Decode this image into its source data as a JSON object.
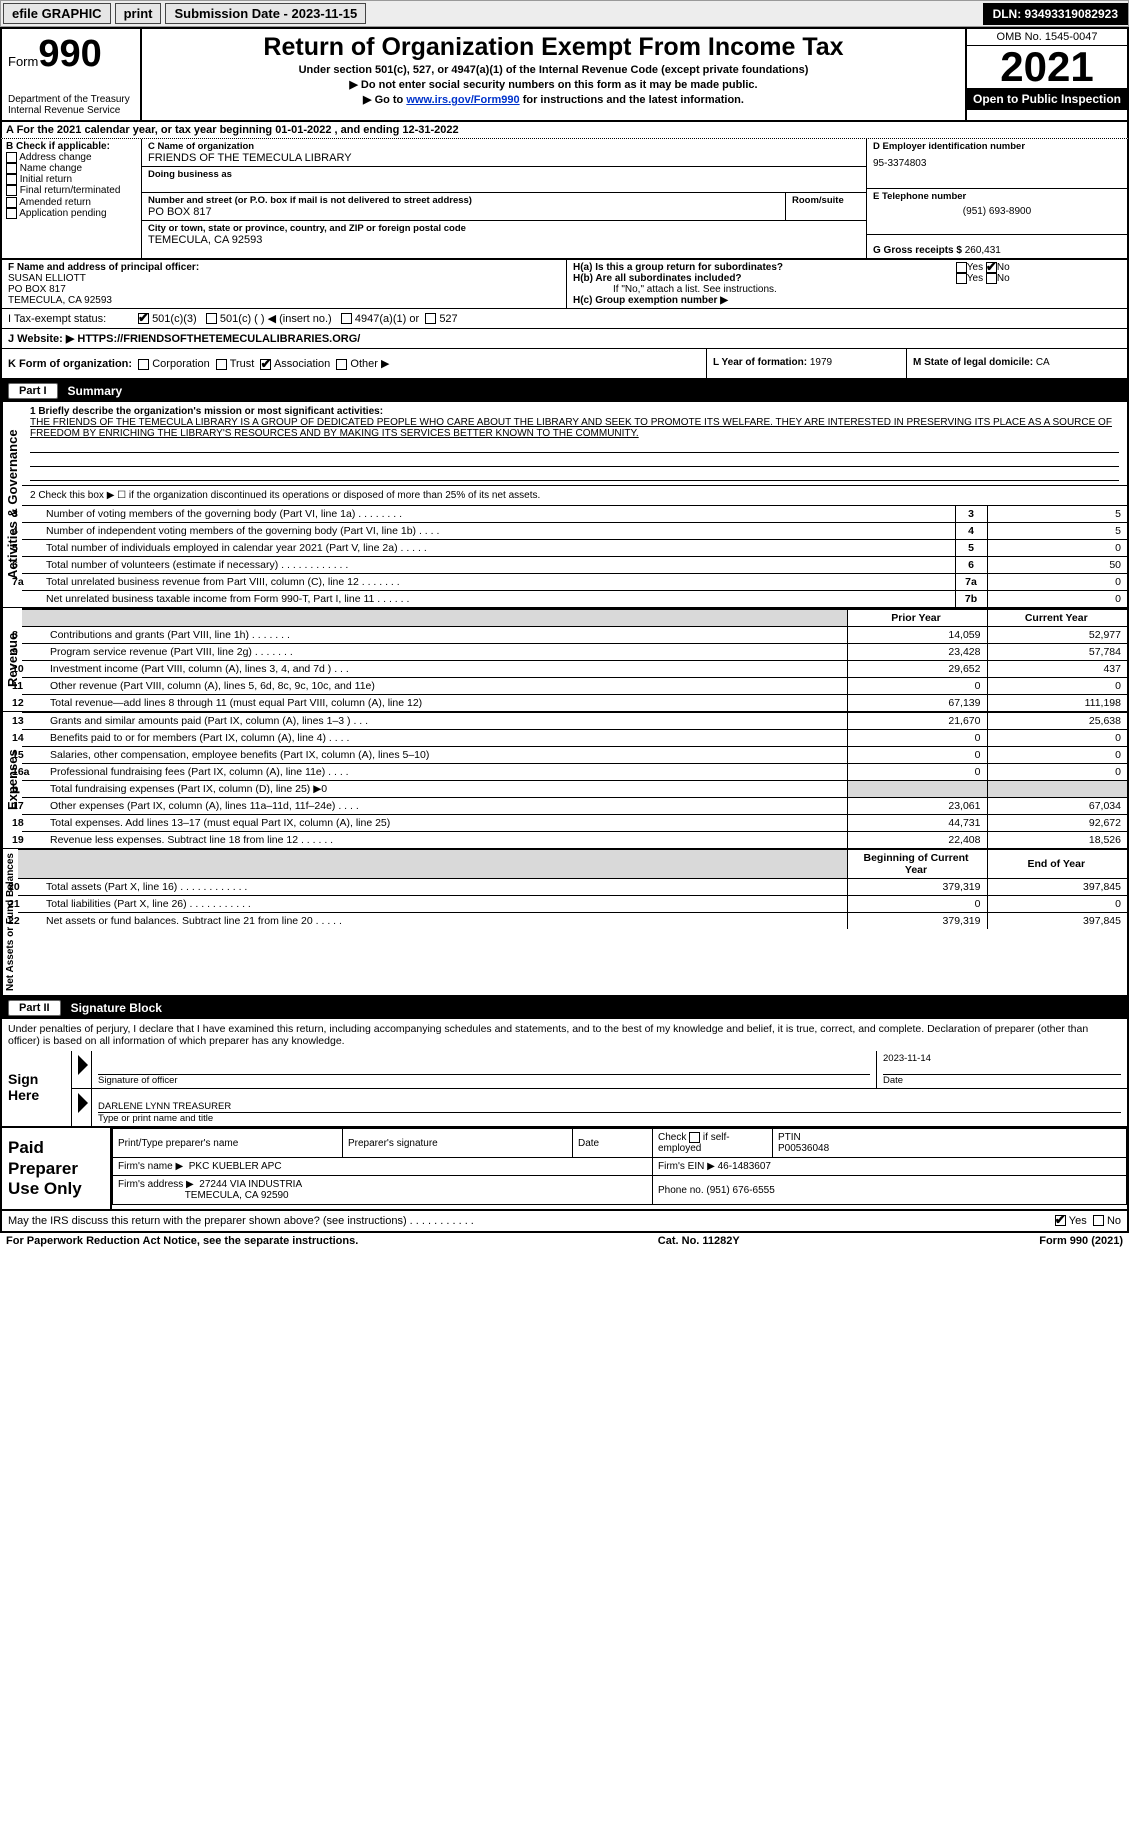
{
  "topbar": {
    "efile": "efile GRAPHIC",
    "print": "print",
    "submission": "Submission Date - 2023-11-15",
    "dln": "DLN: 93493319082923"
  },
  "header": {
    "form_word": "Form",
    "form_num": "990",
    "dept": "Department of the Treasury",
    "irs": "Internal Revenue Service",
    "title": "Return of Organization Exempt From Income Tax",
    "sub1": "Under section 501(c), 527, or 4947(a)(1) of the Internal Revenue Code (except private foundations)",
    "sub2": "▶ Do not enter social security numbers on this form as it may be made public.",
    "sub3_pre": "▶ Go to ",
    "sub3_link": "www.irs.gov/Form990",
    "sub3_post": " for instructions and the latest information.",
    "omb": "OMB No. 1545-0047",
    "year": "2021",
    "open": "Open to Public Inspection"
  },
  "a_line": "A For the 2021 calendar year, or tax year beginning 01-01-2022    , and ending 12-31-2022",
  "b": {
    "title": "B Check if applicable:",
    "items": [
      "Address change",
      "Name change",
      "Initial return",
      "Final return/terminated",
      "Amended return",
      "Application pending"
    ]
  },
  "c": {
    "name_lbl": "C Name of organization",
    "name": "FRIENDS OF THE TEMECULA LIBRARY",
    "dba_lbl": "Doing business as",
    "street_lbl": "Number and street (or P.O. box if mail is not delivered to street address)",
    "room_lbl": "Room/suite",
    "street": "PO BOX 817",
    "city_lbl": "City or town, state or province, country, and ZIP or foreign postal code",
    "city": "TEMECULA, CA  92593"
  },
  "d": {
    "ein_lbl": "D Employer identification number",
    "ein": "95-3374803",
    "phone_lbl": "E Telephone number",
    "phone": "(951) 693-8900",
    "gross_lbl": "G Gross receipts $",
    "gross": "260,431"
  },
  "f": {
    "lbl": "F Name and address of principal officer:",
    "name": "SUSAN ELLIOTT",
    "addr1": "PO BOX 817",
    "addr2": "TEMECULA, CA  92593"
  },
  "h": {
    "a_lbl": "H(a)  Is this a group return for subordinates?",
    "b_lbl": "H(b)  Are all subordinates included?",
    "b_note": "If \"No,\" attach a list. See instructions.",
    "c_lbl": "H(c)  Group exemption number ▶",
    "yes": "Yes",
    "no": "No"
  },
  "i": {
    "lbl": "I   Tax-exempt status:",
    "o1": "501(c)(3)",
    "o2": "501(c) (   ) ◀ (insert no.)",
    "o3": "4947(a)(1) or",
    "o4": "527"
  },
  "j": {
    "lbl": "J  Website: ▶",
    "val": "HTTPS://FRIENDSOFTHETEMECULALIBRARIES.ORG/"
  },
  "k": {
    "lbl": "K Form of organization:",
    "o1": "Corporation",
    "o2": "Trust",
    "o3": "Association",
    "o4": "Other ▶",
    "l_lbl": "L Year of formation:",
    "l_val": "1979",
    "m_lbl": "M State of legal domicile:",
    "m_val": "CA"
  },
  "part1": {
    "hdr": "Part I",
    "title": "Summary",
    "line1_lbl": "1  Briefly describe the organization's mission or most significant activities:",
    "mission": "THE FRIENDS OF THE TEMECULA LIBRARY IS A GROUP OF DEDICATED PEOPLE WHO CARE ABOUT THE LIBRARY AND SEEK TO PROMOTE ITS WELFARE. THEY ARE INTERESTED IN PRESERVING ITS PLACE AS A SOURCE OF FREEDOM BY ENRICHING THE LIBRARY'S RESOURCES AND BY MAKING ITS SERVICES BETTER KNOWN TO THE COMMUNITY.",
    "line2": "2  Check this box ▶ ☐ if the organization discontinued its operations or disposed of more than 25% of its net assets.",
    "rows_gov": [
      {
        "n": "3",
        "lbl": "Number of voting members of the governing body (Part VI, line 1a)   .    .    .    .    .    .    .    .",
        "box": "3",
        "val": "5"
      },
      {
        "n": "4",
        "lbl": "Number of independent voting members of the governing body (Part VI, line 1b)   .    .    .    .",
        "box": "4",
        "val": "5"
      },
      {
        "n": "5",
        "lbl": "Total number of individuals employed in calendar year 2021 (Part V, line 2a)   .    .    .    .    .",
        "box": "5",
        "val": "0"
      },
      {
        "n": "6",
        "lbl": "Total number of volunteers (estimate if necessary)   .    .    .    .    .    .    .    .    .    .    .    .",
        "box": "6",
        "val": "50"
      },
      {
        "n": "7a",
        "lbl": "Total unrelated business revenue from Part VIII, column (C), line 12   .    .    .    .    .    .    .",
        "box": "7a",
        "val": "0"
      },
      {
        "n": "",
        "lbl": "Net unrelated business taxable income from Form 990-T, Part I, line 11   .    .    .    .    .    .",
        "box": "7b",
        "val": "0"
      }
    ],
    "prior_hdr": "Prior Year",
    "curr_hdr": "Current Year",
    "rows_rev": [
      {
        "n": "8",
        "lbl": "Contributions and grants (Part VIII, line 1h)   .    .    .    .    .    .    .",
        "p": "14,059",
        "c": "52,977"
      },
      {
        "n": "9",
        "lbl": "Program service revenue (Part VIII, line 2g)   .    .    .    .    .    .    .",
        "p": "23,428",
        "c": "57,784"
      },
      {
        "n": "10",
        "lbl": "Investment income (Part VIII, column (A), lines 3, 4, and 7d )   .    .    .",
        "p": "29,652",
        "c": "437"
      },
      {
        "n": "11",
        "lbl": "Other revenue (Part VIII, column (A), lines 5, 6d, 8c, 9c, 10c, and 11e)",
        "p": "0",
        "c": "0"
      },
      {
        "n": "12",
        "lbl": "Total revenue—add lines 8 through 11 (must equal Part VIII, column (A), line 12)",
        "p": "67,139",
        "c": "111,198"
      }
    ],
    "rows_exp": [
      {
        "n": "13",
        "lbl": "Grants and similar amounts paid (Part IX, column (A), lines 1–3 )   .    .    .",
        "p": "21,670",
        "c": "25,638"
      },
      {
        "n": "14",
        "lbl": "Benefits paid to or for members (Part IX, column (A), line 4)   .    .    .    .",
        "p": "0",
        "c": "0"
      },
      {
        "n": "15",
        "lbl": "Salaries, other compensation, employee benefits (Part IX, column (A), lines 5–10)",
        "p": "0",
        "c": "0"
      },
      {
        "n": "16a",
        "lbl": "Professional fundraising fees (Part IX, column (A), line 11e)   .    .    .    .",
        "p": "0",
        "c": "0"
      },
      {
        "n": "b",
        "lbl": "Total fundraising expenses (Part IX, column (D), line 25) ▶0",
        "p": "",
        "c": "",
        "grey": true
      },
      {
        "n": "17",
        "lbl": "Other expenses (Part IX, column (A), lines 11a–11d, 11f–24e)   .    .    .    .",
        "p": "23,061",
        "c": "67,034"
      },
      {
        "n": "18",
        "lbl": "Total expenses. Add lines 13–17 (must equal Part IX, column (A), line 25)",
        "p": "44,731",
        "c": "92,672"
      },
      {
        "n": "19",
        "lbl": "Revenue less expenses. Subtract line 18 from line 12   .    .    .    .    .    .",
        "p": "22,408",
        "c": "18,526"
      }
    ],
    "begin_hdr": "Beginning of Current Year",
    "end_hdr": "End of Year",
    "rows_net": [
      {
        "n": "20",
        "lbl": "Total assets (Part X, line 16)   .    .    .    .    .    .    .    .    .    .    .    .",
        "p": "379,319",
        "c": "397,845"
      },
      {
        "n": "21",
        "lbl": "Total liabilities (Part X, line 26)   .    .    .    .    .    .    .    .    .    .    .",
        "p": "0",
        "c": "0"
      },
      {
        "n": "22",
        "lbl": "Net assets or fund balances. Subtract line 21 from line 20   .    .    .    .    .",
        "p": "379,319",
        "c": "397,845"
      }
    ],
    "vert_gov": "Activities & Governance",
    "vert_rev": "Revenue",
    "vert_exp": "Expenses",
    "vert_net": "Net Assets or Fund Balances"
  },
  "part2": {
    "hdr": "Part II",
    "title": "Signature Block",
    "penalties": "Under penalties of perjury, I declare that I have examined this return, including accompanying schedules and statements, and to the best of my knowledge and belief, it is true, correct, and complete. Declaration of preparer (other than officer) is based on all information of which preparer has any knowledge."
  },
  "sign": {
    "here": "Sign Here",
    "sig_lbl": "Signature of officer",
    "date_lbl": "Date",
    "date": "2023-11-14",
    "name_lbl": "Type or print name and title",
    "name": "DARLENE LYNN  TREASURER"
  },
  "paid": {
    "title": "Paid Preparer Use Only",
    "c1": "Print/Type preparer's name",
    "c2": "Preparer's signature",
    "c3": "Date",
    "c4_pre": "Check",
    "c4_post": "if self-employed",
    "c5_lbl": "PTIN",
    "c5": "P00536048",
    "firm_lbl": "Firm's name    ▶",
    "firm": "PKC KUEBLER APC",
    "ein_lbl": "Firm's EIN ▶",
    "ein": "46-1483607",
    "addr_lbl": "Firm's address ▶",
    "addr1": "27244 VIA INDUSTRIA",
    "addr2": "TEMECULA, CA  92590",
    "phone_lbl": "Phone no.",
    "phone": "(951) 676-6555"
  },
  "discuss": {
    "q": "May the IRS discuss this return with the preparer shown above? (see instructions)   .    .    .    .    .    .    .    .    .    .    .",
    "yes": "Yes",
    "no": "No"
  },
  "footer": {
    "left": "For Paperwork Reduction Act Notice, see the separate instructions.",
    "mid": "Cat. No. 11282Y",
    "right": "Form 990 (2021)"
  },
  "colors": {
    "bg": "#ffffff",
    "border": "#000000",
    "grey": "#d9d9d9",
    "topbar": "#ededed",
    "link": "#0033cc"
  }
}
